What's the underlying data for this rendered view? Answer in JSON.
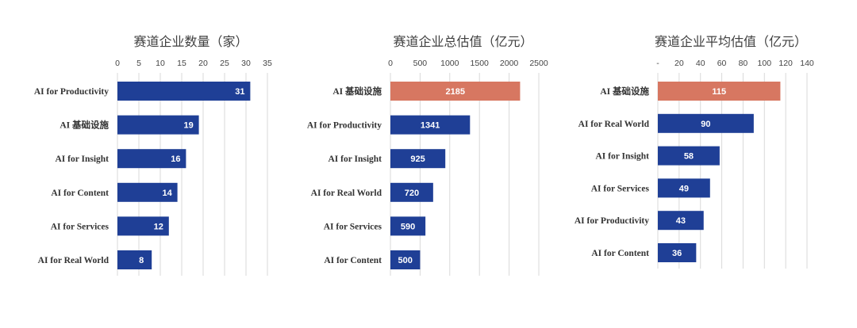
{
  "chart_data": [
    {
      "type": "bar",
      "orientation": "horizontal",
      "title": "赛道企业数量（家）",
      "categories": [
        "AI for Productivity",
        "AI 基础设施",
        "AI for Insight",
        "AI for Content",
        "AI for Services",
        "AI for Real World"
      ],
      "values": [
        31,
        19,
        16,
        14,
        12,
        8
      ],
      "xlim": [
        0,
        35
      ],
      "ticks": [
        "0",
        "5",
        "10",
        "15",
        "20",
        "25",
        "30",
        "35"
      ],
      "tick_values": [
        0,
        5,
        10,
        15,
        20,
        25,
        30,
        35
      ],
      "bar_colors": [
        "#1f3f96",
        "#1f3f96",
        "#1f3f96",
        "#1f3f96",
        "#1f3f96",
        "#1f3f96"
      ],
      "grid": true
    },
    {
      "type": "bar",
      "orientation": "horizontal",
      "title": "赛道企业总估值（亿元）",
      "categories": [
        "AI 基础设施",
        "AI for Productivity",
        "AI for Insight",
        "AI for Real World",
        "AI for Services",
        "AI for Content"
      ],
      "values": [
        2185,
        1341,
        925,
        720,
        590,
        500
      ],
      "xlim": [
        0,
        2500
      ],
      "ticks": [
        "0",
        "500",
        "1000",
        "1500",
        "2000",
        "2500"
      ],
      "tick_values": [
        0,
        500,
        1000,
        1500,
        2000,
        2500
      ],
      "bar_colors": [
        "#d77761",
        "#1f3f96",
        "#1f3f96",
        "#1f3f96",
        "#1f3f96",
        "#1f3f96"
      ],
      "grid": true
    },
    {
      "type": "bar",
      "orientation": "horizontal",
      "title": "赛道企业平均估值（亿元）",
      "categories": [
        "AI 基础设施",
        "AI for Real World",
        "AI for Insight",
        "AI for Services",
        "AI for Productivity",
        "AI for Content"
      ],
      "values": [
        115,
        90,
        58,
        49,
        43,
        36
      ],
      "xlim": [
        0,
        140
      ],
      "ticks": [
        "-",
        "20",
        "40",
        "60",
        "80",
        "100",
        "120",
        "140"
      ],
      "tick_values": [
        0,
        20,
        40,
        60,
        80,
        100,
        120,
        140
      ],
      "bar_colors": [
        "#d77761",
        "#1f3f96",
        "#1f3f96",
        "#1f3f96",
        "#1f3f96",
        "#1f3f96"
      ],
      "grid": true
    }
  ]
}
